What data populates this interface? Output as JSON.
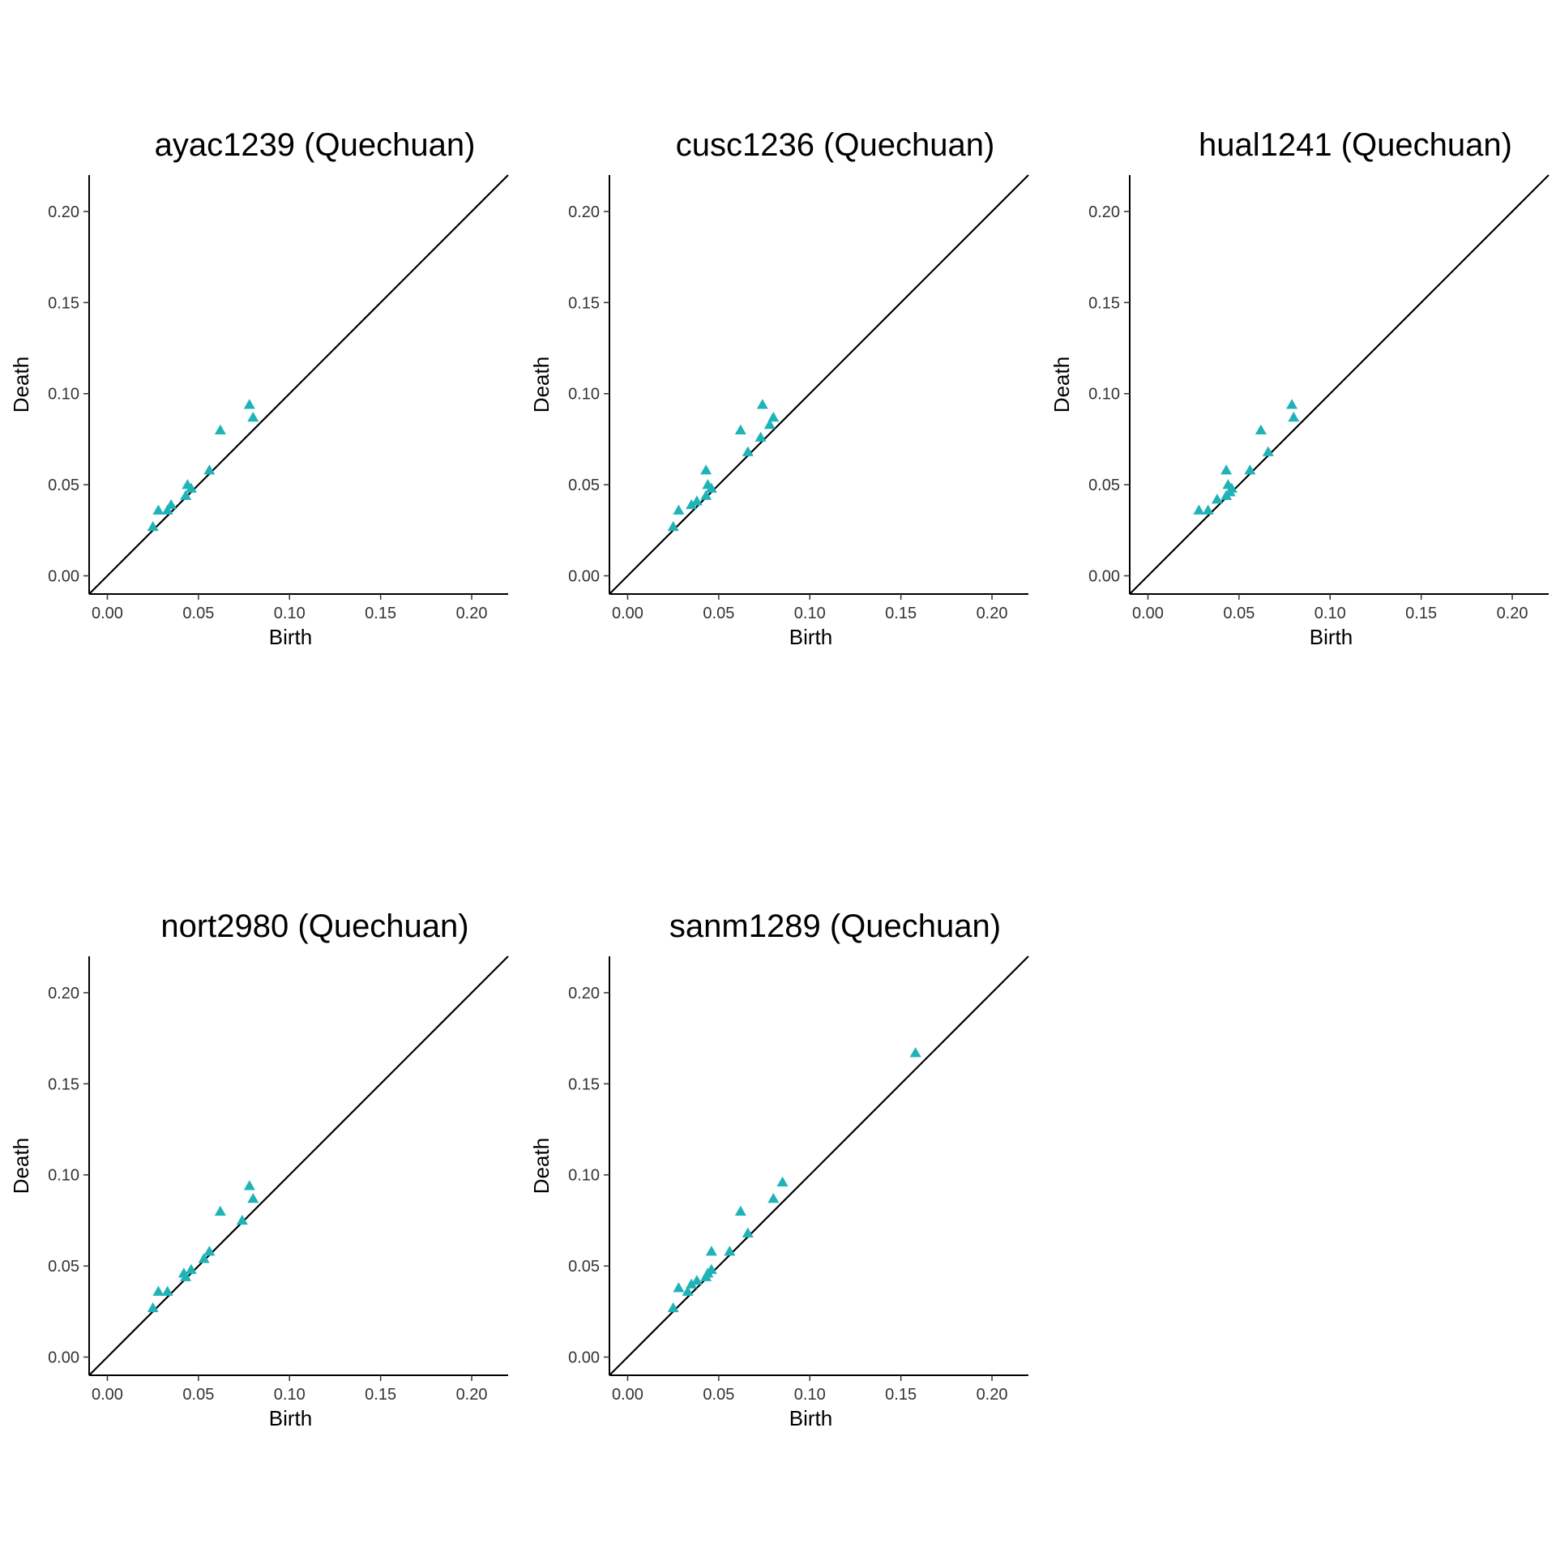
{
  "figure": {
    "background": "#ffffff",
    "point_color": "#1fb3b8",
    "marker": "triangle",
    "diagonal_color": "#000000"
  },
  "chart_data": [
    {
      "type": "scatter",
      "title": "ayac1239 (Quechuan)",
      "xlabel": "Birth",
      "ylabel": "Death",
      "xlim": [
        -0.01,
        0.22
      ],
      "ylim": [
        -0.01,
        0.22
      ],
      "xticks": [
        "0.00",
        "0.05",
        "0.10",
        "0.15",
        "0.20"
      ],
      "yticks": [
        "0.00",
        "0.05",
        "0.10",
        "0.15",
        "0.20"
      ],
      "grid": false,
      "diagonal": true,
      "points": [
        {
          "x": 0.025,
          "y": 0.027
        },
        {
          "x": 0.028,
          "y": 0.036
        },
        {
          "x": 0.033,
          "y": 0.036
        },
        {
          "x": 0.035,
          "y": 0.039
        },
        {
          "x": 0.043,
          "y": 0.044
        },
        {
          "x": 0.044,
          "y": 0.05
        },
        {
          "x": 0.046,
          "y": 0.048
        },
        {
          "x": 0.056,
          "y": 0.058
        },
        {
          "x": 0.062,
          "y": 0.08
        },
        {
          "x": 0.078,
          "y": 0.094
        },
        {
          "x": 0.08,
          "y": 0.087
        }
      ]
    },
    {
      "type": "scatter",
      "title": "cusc1236 (Quechuan)",
      "xlabel": "Birth",
      "ylabel": "Death",
      "xlim": [
        -0.01,
        0.22
      ],
      "ylim": [
        -0.01,
        0.22
      ],
      "xticks": [
        "0.00",
        "0.05",
        "0.10",
        "0.15",
        "0.20"
      ],
      "yticks": [
        "0.00",
        "0.05",
        "0.10",
        "0.15",
        "0.20"
      ],
      "grid": false,
      "diagonal": true,
      "points": [
        {
          "x": 0.025,
          "y": 0.027
        },
        {
          "x": 0.028,
          "y": 0.036
        },
        {
          "x": 0.035,
          "y": 0.039
        },
        {
          "x": 0.038,
          "y": 0.041
        },
        {
          "x": 0.043,
          "y": 0.044
        },
        {
          "x": 0.043,
          "y": 0.058
        },
        {
          "x": 0.044,
          "y": 0.05
        },
        {
          "x": 0.046,
          "y": 0.048
        },
        {
          "x": 0.062,
          "y": 0.08
        },
        {
          "x": 0.066,
          "y": 0.068
        },
        {
          "x": 0.073,
          "y": 0.076
        },
        {
          "x": 0.074,
          "y": 0.094
        },
        {
          "x": 0.078,
          "y": 0.083
        },
        {
          "x": 0.08,
          "y": 0.087
        }
      ]
    },
    {
      "type": "scatter",
      "title": "hual1241 (Quechuan)",
      "xlabel": "Birth",
      "ylabel": "Death",
      "xlim": [
        -0.01,
        0.22
      ],
      "ylim": [
        -0.01,
        0.22
      ],
      "xticks": [
        "0.00",
        "0.05",
        "0.10",
        "0.15",
        "0.20"
      ],
      "yticks": [
        "0.00",
        "0.05",
        "0.10",
        "0.15",
        "0.20"
      ],
      "grid": false,
      "diagonal": true,
      "points": [
        {
          "x": 0.028,
          "y": 0.036
        },
        {
          "x": 0.033,
          "y": 0.036
        },
        {
          "x": 0.038,
          "y": 0.042
        },
        {
          "x": 0.043,
          "y": 0.044
        },
        {
          "x": 0.043,
          "y": 0.058
        },
        {
          "x": 0.044,
          "y": 0.05
        },
        {
          "x": 0.045,
          "y": 0.046
        },
        {
          "x": 0.046,
          "y": 0.048
        },
        {
          "x": 0.056,
          "y": 0.058
        },
        {
          "x": 0.062,
          "y": 0.08
        },
        {
          "x": 0.066,
          "y": 0.068
        },
        {
          "x": 0.079,
          "y": 0.094
        },
        {
          "x": 0.08,
          "y": 0.087
        }
      ]
    },
    {
      "type": "scatter",
      "title": "nort2980 (Quechuan)",
      "xlabel": "Birth",
      "ylabel": "Death",
      "xlim": [
        -0.01,
        0.22
      ],
      "ylim": [
        -0.01,
        0.22
      ],
      "xticks": [
        "0.00",
        "0.05",
        "0.10",
        "0.15",
        "0.20"
      ],
      "yticks": [
        "0.00",
        "0.05",
        "0.10",
        "0.15",
        "0.20"
      ],
      "grid": false,
      "diagonal": true,
      "points": [
        {
          "x": 0.025,
          "y": 0.027
        },
        {
          "x": 0.028,
          "y": 0.036
        },
        {
          "x": 0.033,
          "y": 0.036
        },
        {
          "x": 0.042,
          "y": 0.046
        },
        {
          "x": 0.043,
          "y": 0.044
        },
        {
          "x": 0.046,
          "y": 0.048
        },
        {
          "x": 0.053,
          "y": 0.054
        },
        {
          "x": 0.056,
          "y": 0.058
        },
        {
          "x": 0.062,
          "y": 0.08
        },
        {
          "x": 0.074,
          "y": 0.075
        },
        {
          "x": 0.078,
          "y": 0.094
        },
        {
          "x": 0.08,
          "y": 0.087
        }
      ]
    },
    {
      "type": "scatter",
      "title": "sanm1289 (Quechuan)",
      "xlabel": "Birth",
      "ylabel": "Death",
      "xlim": [
        -0.01,
        0.22
      ],
      "ylim": [
        -0.01,
        0.22
      ],
      "xticks": [
        "0.00",
        "0.05",
        "0.10",
        "0.15",
        "0.20"
      ],
      "yticks": [
        "0.00",
        "0.05",
        "0.10",
        "0.15",
        "0.20"
      ],
      "grid": false,
      "diagonal": true,
      "points": [
        {
          "x": 0.025,
          "y": 0.027
        },
        {
          "x": 0.028,
          "y": 0.038
        },
        {
          "x": 0.033,
          "y": 0.036
        },
        {
          "x": 0.035,
          "y": 0.04
        },
        {
          "x": 0.038,
          "y": 0.042
        },
        {
          "x": 0.043,
          "y": 0.044
        },
        {
          "x": 0.044,
          "y": 0.046
        },
        {
          "x": 0.046,
          "y": 0.048
        },
        {
          "x": 0.046,
          "y": 0.058
        },
        {
          "x": 0.056,
          "y": 0.058
        },
        {
          "x": 0.062,
          "y": 0.08
        },
        {
          "x": 0.066,
          "y": 0.068
        },
        {
          "x": 0.08,
          "y": 0.087
        },
        {
          "x": 0.085,
          "y": 0.096
        },
        {
          "x": 0.158,
          "y": 0.167
        }
      ]
    }
  ]
}
